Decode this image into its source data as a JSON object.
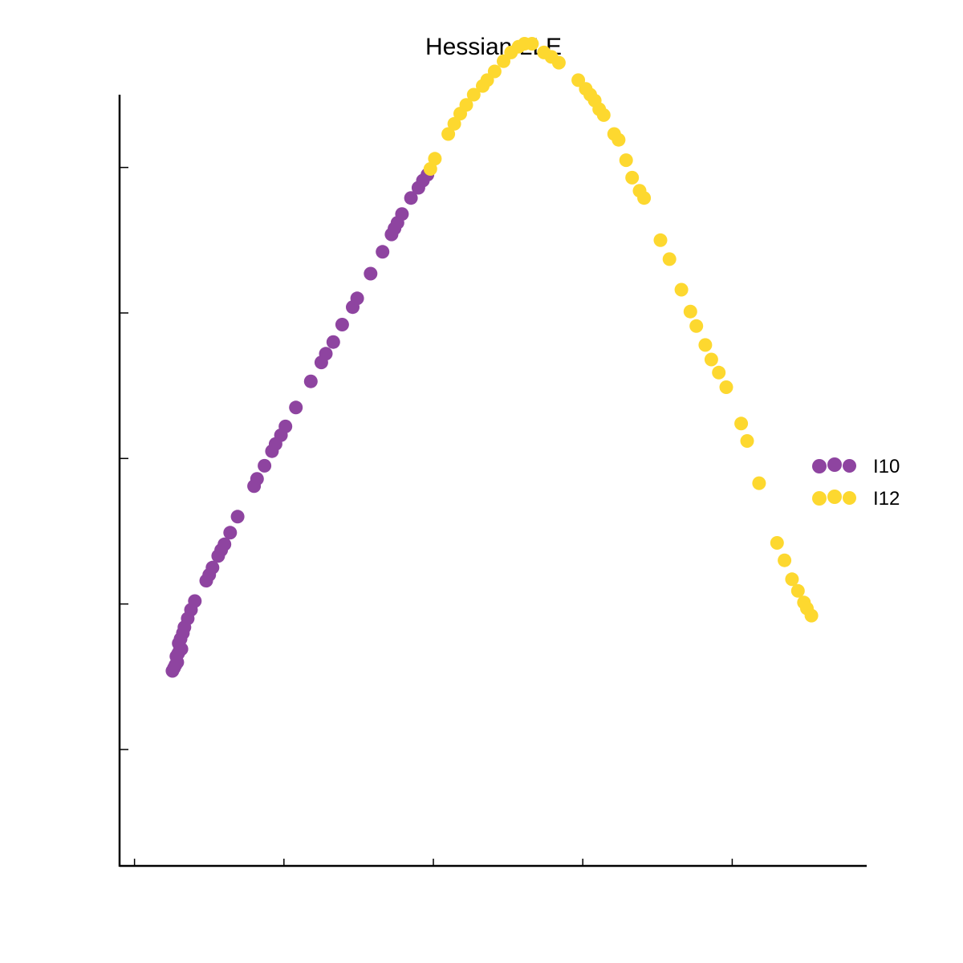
{
  "chart_data": {
    "type": "scatter",
    "title": "Hessian LLE",
    "xlabel": "",
    "ylabel": "",
    "xlim": [
      -0.005,
      0.245
    ],
    "ylim": [
      0.2,
      0.73
    ],
    "xticks": [
      0.0,
      0.05,
      0.1,
      0.15,
      0.2
    ],
    "yticks": [
      0.28,
      0.38,
      0.48,
      0.58,
      0.68
    ],
    "show_tick_labels": false,
    "grid": false,
    "legend_position": "right",
    "series": [
      {
        "name": "I10",
        "color": "#8e44a0",
        "points": [
          [
            0.0127,
            0.334
          ],
          [
            0.0132,
            0.336
          ],
          [
            0.0137,
            0.338
          ],
          [
            0.0143,
            0.34
          ],
          [
            0.014,
            0.344
          ],
          [
            0.0146,
            0.346
          ],
          [
            0.0151,
            0.348
          ],
          [
            0.0157,
            0.349
          ],
          [
            0.0148,
            0.353
          ],
          [
            0.0154,
            0.356
          ],
          [
            0.0162,
            0.36
          ],
          [
            0.0167,
            0.364
          ],
          [
            0.0178,
            0.37
          ],
          [
            0.0189,
            0.376
          ],
          [
            0.0202,
            0.382
          ],
          [
            0.024,
            0.396
          ],
          [
            0.025,
            0.4
          ],
          [
            0.0261,
            0.405
          ],
          [
            0.028,
            0.413
          ],
          [
            0.029,
            0.417
          ],
          [
            0.0301,
            0.421
          ],
          [
            0.032,
            0.429
          ],
          [
            0.0345,
            0.44
          ],
          [
            0.04,
            0.461
          ],
          [
            0.041,
            0.466
          ],
          [
            0.0435,
            0.475
          ],
          [
            0.046,
            0.485
          ],
          [
            0.0472,
            0.49
          ],
          [
            0.049,
            0.496
          ],
          [
            0.0505,
            0.502
          ],
          [
            0.054,
            0.515
          ],
          [
            0.059,
            0.533
          ],
          [
            0.0625,
            0.546
          ],
          [
            0.064,
            0.552
          ],
          [
            0.0665,
            0.56
          ],
          [
            0.0695,
            0.572
          ],
          [
            0.073,
            0.584
          ],
          [
            0.0745,
            0.59
          ],
          [
            0.079,
            0.607
          ],
          [
            0.083,
            0.622
          ],
          [
            0.086,
            0.634
          ],
          [
            0.087,
            0.638
          ],
          [
            0.088,
            0.642
          ],
          [
            0.0895,
            0.648
          ],
          [
            0.0925,
            0.659
          ],
          [
            0.095,
            0.666
          ],
          [
            0.0965,
            0.671
          ],
          [
            0.098,
            0.675
          ]
        ]
      },
      {
        "name": "I12",
        "color": "#fdd82f",
        "points": [
          [
            0.099,
            0.679
          ],
          [
            0.1005,
            0.686
          ],
          [
            0.105,
            0.703
          ],
          [
            0.107,
            0.71
          ],
          [
            0.109,
            0.717
          ],
          [
            0.111,
            0.723
          ],
          [
            0.1135,
            0.73
          ],
          [
            0.1165,
            0.736
          ],
          [
            0.118,
            0.74
          ],
          [
            0.1205,
            0.746
          ],
          [
            0.1235,
            0.753
          ],
          [
            0.126,
            0.759
          ],
          [
            0.1285,
            0.763
          ],
          [
            0.1305,
            0.765
          ],
          [
            0.133,
            0.765
          ],
          [
            0.137,
            0.759
          ],
          [
            0.1395,
            0.756
          ],
          [
            0.142,
            0.752
          ],
          [
            0.1485,
            0.74
          ],
          [
            0.151,
            0.734
          ],
          [
            0.1525,
            0.73
          ],
          [
            0.154,
            0.726
          ],
          [
            0.1555,
            0.72
          ],
          [
            0.157,
            0.716
          ],
          [
            0.1605,
            0.703
          ],
          [
            0.162,
            0.699
          ],
          [
            0.1645,
            0.685
          ],
          [
            0.1665,
            0.673
          ],
          [
            0.169,
            0.664
          ],
          [
            0.1705,
            0.659
          ],
          [
            0.176,
            0.63
          ],
          [
            0.179,
            0.617
          ],
          [
            0.183,
            0.596
          ],
          [
            0.186,
            0.581
          ],
          [
            0.188,
            0.571
          ],
          [
            0.191,
            0.558
          ],
          [
            0.193,
            0.548
          ],
          [
            0.1955,
            0.539
          ],
          [
            0.198,
            0.529
          ],
          [
            0.203,
            0.504
          ],
          [
            0.205,
            0.492
          ],
          [
            0.209,
            0.463
          ],
          [
            0.215,
            0.422
          ],
          [
            0.2175,
            0.41
          ],
          [
            0.22,
            0.397
          ],
          [
            0.222,
            0.389
          ],
          [
            0.224,
            0.381
          ],
          [
            0.225,
            0.377
          ],
          [
            0.2265,
            0.372
          ]
        ]
      }
    ]
  }
}
